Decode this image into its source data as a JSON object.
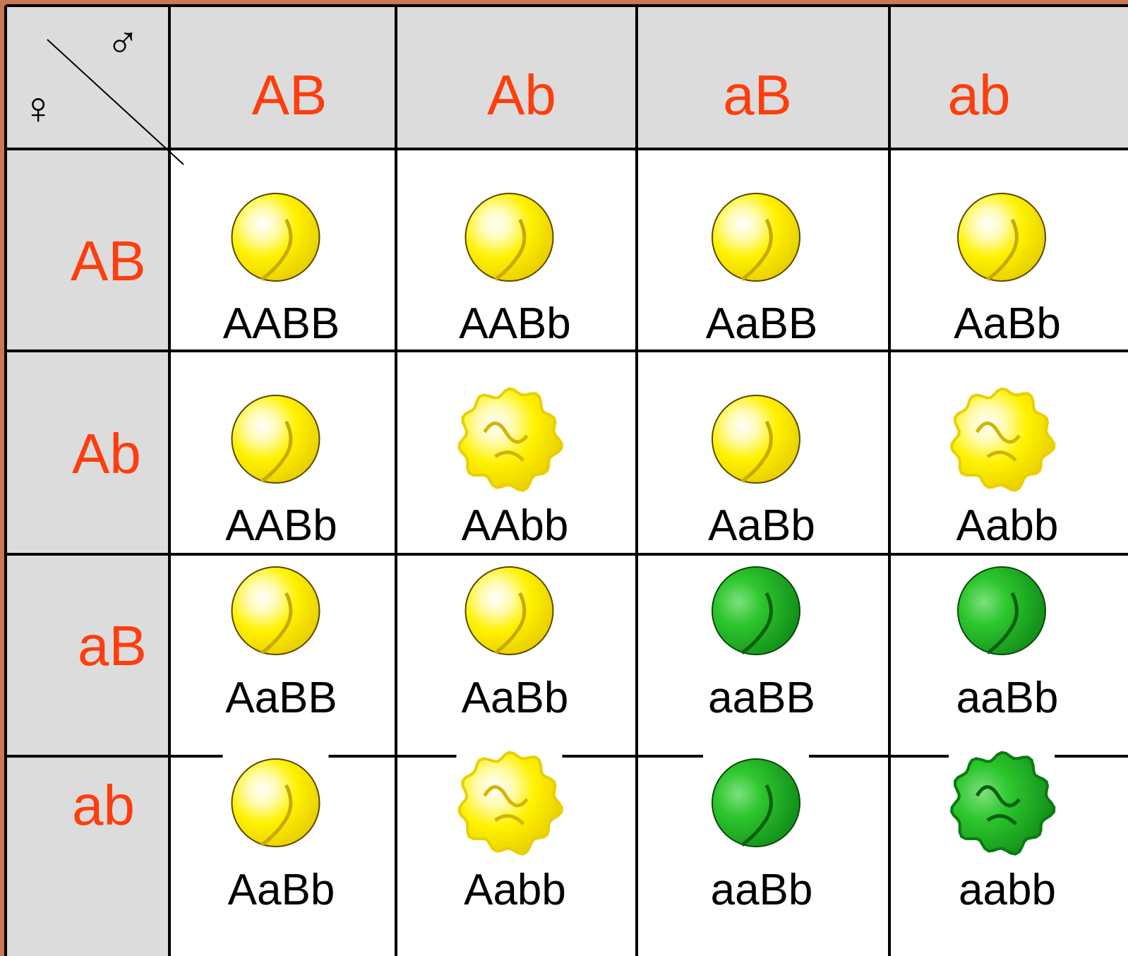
{
  "corner": {
    "male": "♂",
    "female": "♀"
  },
  "columns": [
    "AB",
    "Ab",
    "aB",
    "ab"
  ],
  "rows": [
    {
      "label": "AB",
      "cells": [
        "AABB",
        "AABb",
        "AaBB",
        "AaBb"
      ]
    },
    {
      "label": "Ab",
      "cells": [
        "AABb",
        "AAbb",
        "AaBb",
        "Aabb"
      ]
    },
    {
      "label": "aB",
      "cells": [
        "AaBB",
        "AaBb",
        "aaBB",
        "aaBb"
      ]
    },
    {
      "label": "ab",
      "cells": [
        "AaBb",
        "Aabb",
        "aaBb",
        "aabb"
      ]
    }
  ]
}
